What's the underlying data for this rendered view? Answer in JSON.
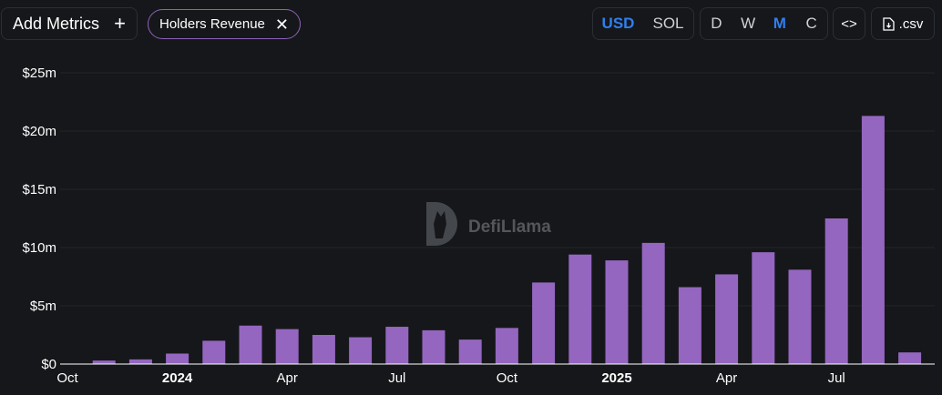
{
  "toolbar": {
    "add_metrics_label": "Add Metrics",
    "add_icon": "plus-icon",
    "metric_chip_label": "Holders Revenue",
    "remove_icon": "close-icon",
    "currency_options": [
      "USD",
      "SOL"
    ],
    "currency_selected": "USD",
    "period_options": [
      "D",
      "W",
      "M",
      "C"
    ],
    "period_selected": "M",
    "embed_icon": "code-icon",
    "csv_label": ".csv",
    "csv_icon": "file-download-icon"
  },
  "watermark": {
    "text": "DefiLlama"
  },
  "colors": {
    "bar": "#9466c0",
    "accent": "#2f7ff0",
    "chip_border": "#8f61b8",
    "background": "#16171a"
  },
  "chart_data": {
    "type": "bar",
    "categories": [
      "2023-10",
      "2023-11",
      "2023-12",
      "2024-01",
      "2024-02",
      "2024-03",
      "2024-04",
      "2024-05",
      "2024-06",
      "2024-07",
      "2024-08",
      "2024-09",
      "2024-10",
      "2024-11",
      "2024-12",
      "2025-01",
      "2025-02",
      "2025-03",
      "2025-04",
      "2025-05",
      "2025-06",
      "2025-07",
      "2025-08",
      "2025-09"
    ],
    "series": [
      {
        "values": [
          0,
          0.3,
          0.4,
          0.9,
          2.0,
          3.3,
          3.0,
          2.5,
          2.3,
          3.2,
          2.9,
          2.1,
          3.1,
          7.0,
          9.4,
          8.9,
          10.4,
          6.6,
          7.7,
          9.6,
          8.1,
          12.5,
          21.3,
          1.0
        ]
      }
    ],
    "unit": "million USD",
    "ylim": [
      0,
      25
    ],
    "y_ticks": [
      0,
      5,
      10,
      15,
      20,
      25
    ],
    "y_tick_labels": [
      "$0",
      "$5m",
      "$10m",
      "$15m",
      "$20m",
      "$25m"
    ],
    "x_tick_labels": [
      {
        "label": "Oct",
        "category": "2023-10",
        "bold": false
      },
      {
        "label": "2024",
        "category": "2024-01",
        "bold": true
      },
      {
        "label": "Apr",
        "category": "2024-04",
        "bold": false
      },
      {
        "label": "Jul",
        "category": "2024-07",
        "bold": false
      },
      {
        "label": "Oct",
        "category": "2024-10",
        "bold": false
      },
      {
        "label": "2025",
        "category": "2025-01",
        "bold": true
      },
      {
        "label": "Apr",
        "category": "2025-04",
        "bold": false
      },
      {
        "label": "Jul",
        "category": "2025-07",
        "bold": false
      }
    ],
    "grid": true,
    "legend": "none"
  }
}
